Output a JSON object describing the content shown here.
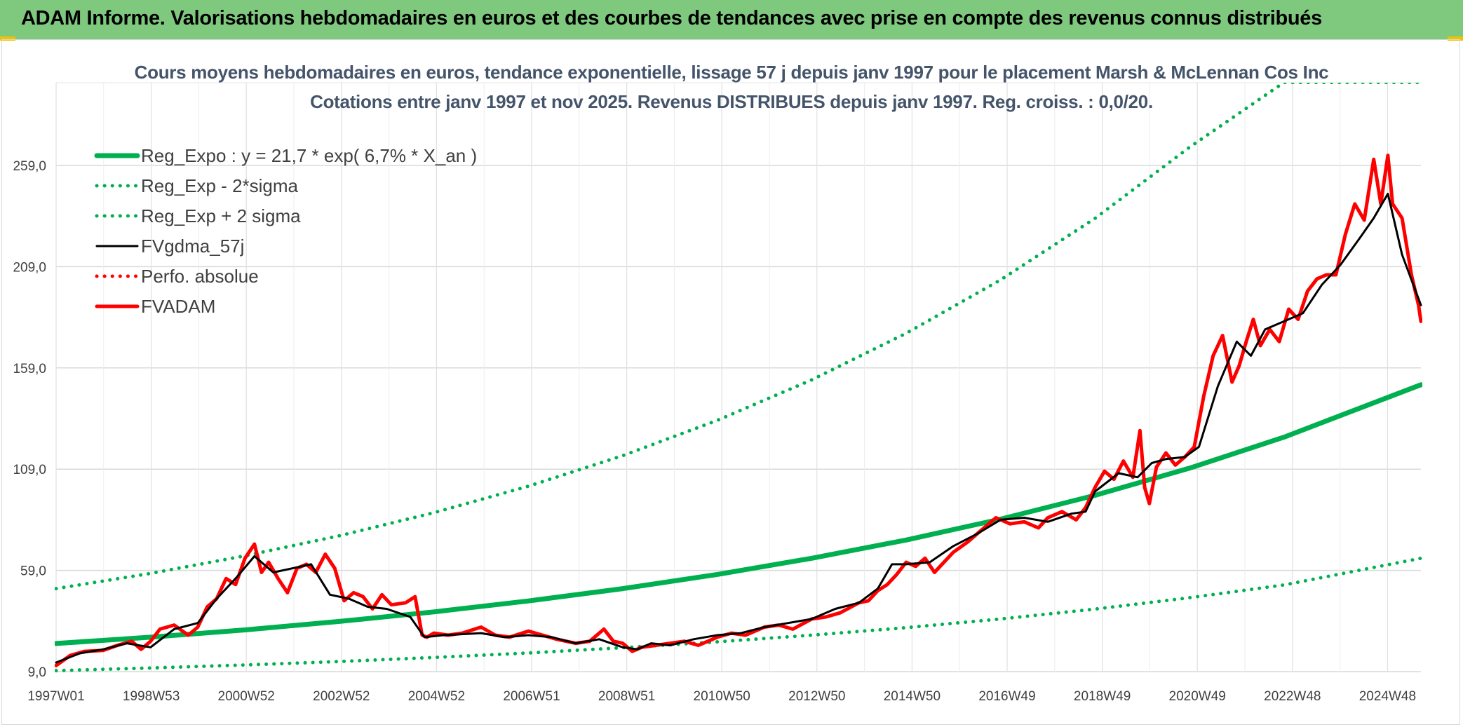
{
  "banner": {
    "title": "ADAM Informe. Valorisations hebdomadaires en euros et des courbes de tendances avec prise en compte des revenus connus distribués",
    "color": "#7fc97f"
  },
  "chart_data": {
    "type": "line",
    "title": "Cours moyens hebdomadaires en euros, tendance exponentielle, lissage 57 j depuis janv 1997 pour le placement Marsh & McLennan Cos Inc",
    "subtitle": "Cotations entre janv 1997 et nov 2025. Revenus DISTRIBUES depuis janv 1997. Reg. croiss. : 0,0/20.",
    "xlabel": "",
    "ylabel": "",
    "x_ticks": [
      "1997W01",
      "1998W53",
      "2000W52",
      "2002W52",
      "2004W52",
      "2006W51",
      "2008W51",
      "2010W50",
      "2012W50",
      "2014W50",
      "2016W49",
      "2018W49",
      "2020W49",
      "2022W48",
      "2024W48"
    ],
    "y_ticks": [
      "9,0",
      "59,0",
      "109,0",
      "159,0",
      "209,0",
      "259,0"
    ],
    "xlim": [
      1997.0,
      2025.9
    ],
    "ylim": [
      9,
      300
    ],
    "grid": true,
    "legend_position": "top-left",
    "series": [
      {
        "name": "Reg_Expo : y = 21,7 * exp( 6,7% *  X_an )",
        "kind": "curve",
        "color": "#00b050",
        "style": "solid",
        "x": [
          1997.0,
          1999.0,
          2001.0,
          2003.0,
          2005.0,
          2007.0,
          2009.0,
          2011.0,
          2013.0,
          2015.0,
          2017.0,
          2019.0,
          2021.0,
          2023.0,
          2025.9
        ],
        "values": [
          22.9,
          26.0,
          29.6,
          33.8,
          38.5,
          43.9,
          50.0,
          57.0,
          65.0,
          74.0,
          84.3,
          96.1,
          109.5,
          124.8,
          150.7
        ]
      },
      {
        "name": "Reg_Exp - 2*sigma",
        "kind": "curve",
        "color": "#00b050",
        "style": "dotted",
        "x": [
          1997.0,
          1999.0,
          2001.0,
          2003.0,
          2005.0,
          2007.0,
          2009.0,
          2011.0,
          2013.0,
          2015.0,
          2017.0,
          2019.0,
          2021.0,
          2023.0,
          2025.9
        ],
        "values": [
          9.5,
          10.8,
          12.3,
          14.0,
          16.0,
          18.2,
          20.8,
          23.7,
          27.0,
          30.7,
          35.0,
          39.9,
          45.5,
          51.8,
          65.0
        ]
      },
      {
        "name": "Reg_Exp + 2 sigma",
        "kind": "curve",
        "color": "#00b050",
        "style": "dotted",
        "x": [
          1997.0,
          1999.0,
          2001.0,
          2003.0,
          2005.0,
          2007.0,
          2009.0,
          2011.0,
          2013.0,
          2015.0,
          2017.0,
          2019.0,
          2021.0,
          2023.0,
          2025.9
        ],
        "values": [
          50.0,
          57.5,
          66.2,
          76.1,
          87.5,
          100.6,
          115.7,
          133.1,
          153.1,
          176.1,
          202.5,
          232.9,
          268.0,
          300.0,
          300.0
        ]
      },
      {
        "name": "FVgdma_57j",
        "kind": "price",
        "color": "#000000",
        "style": "solid",
        "x": [
          1997.0,
          1997.5,
          1998.0,
          1998.5,
          1999.0,
          1999.5,
          2000.0,
          2000.4,
          2000.8,
          2001.2,
          2001.6,
          2002.0,
          2002.4,
          2002.8,
          2003.2,
          2003.6,
          2004.0,
          2004.5,
          2004.8,
          2005.2,
          2006.0,
          2006.5,
          2007.0,
          2007.5,
          2008.0,
          2008.5,
          2009.0,
          2009.3,
          2009.6,
          2010.0,
          2010.5,
          2011.0,
          2011.5,
          2012.0,
          2012.5,
          2013.0,
          2013.5,
          2014.0,
          2014.4,
          2014.7,
          2015.0,
          2015.5,
          2016.0,
          2016.5,
          2017.0,
          2017.5,
          2018.0,
          2018.5,
          2018.8,
          2019.0,
          2019.5,
          2019.9,
          2020.2,
          2020.5,
          2020.9,
          2021.2,
          2021.6,
          2022.0,
          2022.3,
          2022.6,
          2023.0,
          2023.4,
          2023.8,
          2024.2,
          2024.6,
          2024.9,
          2025.2,
          2025.5,
          2025.9
        ],
        "values": [
          13.5,
          18.0,
          20.0,
          23.0,
          21.0,
          30.0,
          33.0,
          45.0,
          55.0,
          66.0,
          58.0,
          60.0,
          62.0,
          47.0,
          45.0,
          41.0,
          40.0,
          36.0,
          26.0,
          27.0,
          28.0,
          26.0,
          27.0,
          26.0,
          23.0,
          25.0,
          21.0,
          20.0,
          23.0,
          22.0,
          25.0,
          27.0,
          28.0,
          31.0,
          33.0,
          35.0,
          40.0,
          43.0,
          50.0,
          62.0,
          62.0,
          63.0,
          71.0,
          77.0,
          84.0,
          85.0,
          83.0,
          87.0,
          88.0,
          98.0,
          107.0,
          105.0,
          112.0,
          114.0,
          115.0,
          120.0,
          150.0,
          172.0,
          165.0,
          178.0,
          182.0,
          186.0,
          200.0,
          210.0,
          223.0,
          233.0,
          245.0,
          215.0,
          190.0
        ]
      },
      {
        "name": "Perfo. absolue",
        "kind": "price",
        "color": "#ff0000",
        "style": "dotted",
        "x": [],
        "values": []
      },
      {
        "name": "FVADAM",
        "kind": "price",
        "color": "#ff0000",
        "style": "solid",
        "x": [
          1997.0,
          1997.3,
          1997.6,
          1998.0,
          1998.3,
          1998.6,
          1998.8,
          1999.0,
          1999.2,
          1999.5,
          1999.8,
          2000.0,
          2000.2,
          2000.4,
          2000.6,
          2000.8,
          2001.0,
          2001.2,
          2001.35,
          2001.5,
          2001.7,
          2001.9,
          2002.1,
          2002.3,
          2002.5,
          2002.7,
          2002.9,
          2003.1,
          2003.3,
          2003.5,
          2003.7,
          2003.9,
          2004.1,
          2004.4,
          2004.6,
          2004.75,
          2004.85,
          2005.0,
          2005.3,
          2005.6,
          2006.0,
          2006.3,
          2006.6,
          2007.0,
          2007.3,
          2007.6,
          2008.0,
          2008.3,
          2008.6,
          2008.8,
          2009.0,
          2009.2,
          2009.4,
          2009.7,
          2010.0,
          2010.3,
          2010.6,
          2011.0,
          2011.3,
          2011.6,
          2012.0,
          2012.3,
          2012.6,
          2013.0,
          2013.3,
          2013.6,
          2014.0,
          2014.2,
          2014.4,
          2014.6,
          2014.8,
          2015.0,
          2015.2,
          2015.4,
          2015.6,
          2015.8,
          2016.0,
          2016.3,
          2016.6,
          2016.9,
          2017.2,
          2017.5,
          2017.8,
          2018.0,
          2018.3,
          2018.6,
          2018.8,
          2019.0,
          2019.2,
          2019.4,
          2019.6,
          2019.8,
          2019.95,
          2020.05,
          2020.15,
          2020.3,
          2020.5,
          2020.7,
          2020.9,
          2021.1,
          2021.3,
          2021.5,
          2021.7,
          2021.9,
          2022.05,
          2022.2,
          2022.35,
          2022.5,
          2022.7,
          2022.9,
          2023.1,
          2023.3,
          2023.5,
          2023.7,
          2023.9,
          2024.1,
          2024.3,
          2024.5,
          2024.7,
          2024.9,
          2025.05,
          2025.2,
          2025.3,
          2025.5,
          2025.7,
          2025.85,
          2025.9
        ],
        "values": [
          12.0,
          17.0,
          19.0,
          19.5,
          22.0,
          24.0,
          20.0,
          24.0,
          30.0,
          32.0,
          27.0,
          31.0,
          41.0,
          45.0,
          55.0,
          52.0,
          65.0,
          72.0,
          58.0,
          63.0,
          55.0,
          48.0,
          60.0,
          62.0,
          58.0,
          67.0,
          60.0,
          44.0,
          48.0,
          46.0,
          40.0,
          47.0,
          42.0,
          43.0,
          46.0,
          27.0,
          26.0,
          28.0,
          27.0,
          28.0,
          31.0,
          27.0,
          26.0,
          29.0,
          27.0,
          25.0,
          23.0,
          24.0,
          30.0,
          24.0,
          23.0,
          19.0,
          21.0,
          22.0,
          23.0,
          24.0,
          22.0,
          26.0,
          28.0,
          27.0,
          31.0,
          32.0,
          30.0,
          35.0,
          36.0,
          38.0,
          43.0,
          44.0,
          49.0,
          52.0,
          57.0,
          63.0,
          61.0,
          65.0,
          58.0,
          63.0,
          68.0,
          73.0,
          79.0,
          85.0,
          82.0,
          83.0,
          80.0,
          85.0,
          88.0,
          84.0,
          90.0,
          100.0,
          108.0,
          104.0,
          113.0,
          105.0,
          128.0,
          100.0,
          92.0,
          110.0,
          117.0,
          111.0,
          115.0,
          120.0,
          145.0,
          165.0,
          175.0,
          152.0,
          160.0,
          172.0,
          183.0,
          170.0,
          178.0,
          172.0,
          188.0,
          183.0,
          197.0,
          203.0,
          205.0,
          205.0,
          225.0,
          240.0,
          232.0,
          262.0,
          240.0,
          264.0,
          240.0,
          233.0,
          205.0,
          190.0,
          182.0
        ]
      }
    ]
  }
}
